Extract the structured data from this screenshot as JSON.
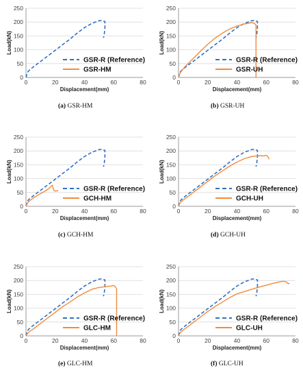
{
  "colors": {
    "reference": "#2f6fc2",
    "specimen": "#f28a3c",
    "grid": "#d9d9d9",
    "axis": "#9a9a9a"
  },
  "chart_data": [
    {
      "type": "line",
      "caption_letter": "(a)",
      "caption_text": "GSR-HM",
      "xlabel": "Displacement(mm)",
      "ylabel": "Load(kN)",
      "xlim": [
        0,
        80
      ],
      "ylim": [
        0,
        250
      ],
      "xticks": [
        0,
        20,
        40,
        60,
        80
      ],
      "yticks": [
        0,
        50,
        100,
        150,
        200,
        250
      ],
      "grid": "horizontal",
      "legend": "bottom-right",
      "series": [
        {
          "name": "GSR-R (Reference)",
          "style": "dashed",
          "color": "#2f6fc2",
          "x": [
            0,
            1,
            2,
            5,
            10,
            15,
            20,
            25,
            30,
            35,
            40,
            45,
            50,
            52,
            53,
            54,
            54,
            53.5,
            53
          ],
          "y": [
            0,
            18,
            25,
            38,
            58,
            78,
            98,
            118,
            138,
            160,
            180,
            195,
            205,
            206,
            204,
            202,
            180,
            155,
            143
          ]
        },
        {
          "name": "GSR-HM",
          "style": "solid",
          "color": "#f28a3c",
          "x": [],
          "y": []
        }
      ]
    },
    {
      "type": "line",
      "caption_letter": "(b)",
      "caption_text": "GSR-UH",
      "xlabel": "Displacement(mm)",
      "ylabel": "Load(kN)",
      "xlim": [
        0,
        80
      ],
      "ylim": [
        0,
        250
      ],
      "xticks": [
        0,
        20,
        40,
        60,
        80
      ],
      "yticks": [
        0,
        50,
        100,
        150,
        200,
        250
      ],
      "grid": "horizontal",
      "legend": "bottom-right",
      "series": [
        {
          "name": "GSR-R (Reference)",
          "style": "dashed",
          "color": "#2f6fc2",
          "x": [
            0,
            1,
            2,
            5,
            10,
            15,
            20,
            25,
            30,
            35,
            40,
            45,
            50,
            52,
            53,
            54,
            54,
            53.5,
            53
          ],
          "y": [
            0,
            18,
            25,
            38,
            58,
            78,
            98,
            118,
            138,
            160,
            180,
            195,
            205,
            206,
            204,
            202,
            180,
            155,
            143
          ]
        },
        {
          "name": "GSR-UH",
          "style": "solid",
          "color": "#f28a3c",
          "x": [
            0,
            1,
            3,
            5,
            10,
            15,
            20,
            25,
            30,
            35,
            40,
            45,
            50,
            52,
            53,
            53,
            53
          ],
          "y": [
            0,
            15,
            30,
            42,
            68,
            95,
            120,
            142,
            160,
            175,
            186,
            193,
            198,
            195,
            190,
            100,
            0
          ]
        }
      ]
    },
    {
      "type": "line",
      "caption_letter": "(c)",
      "caption_text": "GCH-HM",
      "xlabel": "Displacement(mm)",
      "ylabel": "Load(kN)",
      "xlim": [
        0,
        80
      ],
      "ylim": [
        0,
        250
      ],
      "xticks": [
        0,
        20,
        40,
        60,
        80
      ],
      "yticks": [
        0,
        50,
        100,
        150,
        200,
        250
      ],
      "grid": "horizontal",
      "legend": "bottom-right",
      "series": [
        {
          "name": "GSR-R (Reference)",
          "style": "dashed",
          "color": "#2f6fc2",
          "x": [
            0,
            1,
            2,
            5,
            10,
            15,
            20,
            25,
            30,
            35,
            40,
            45,
            50,
            52,
            53,
            54,
            54,
            53.5,
            53
          ],
          "y": [
            0,
            18,
            25,
            38,
            58,
            78,
            98,
            118,
            138,
            160,
            180,
            195,
            205,
            206,
            204,
            202,
            180,
            155,
            143
          ]
        },
        {
          "name": "GCH-HM",
          "style": "solid",
          "color": "#f28a3c",
          "x": [
            0,
            1,
            3,
            5,
            8,
            10,
            12,
            14,
            16,
            17,
            18,
            19,
            20,
            22
          ],
          "y": [
            0,
            12,
            22,
            30,
            40,
            46,
            52,
            58,
            66,
            72,
            76,
            58,
            55,
            57
          ]
        }
      ]
    },
    {
      "type": "line",
      "caption_letter": "(d)",
      "caption_text": "GCH-UH",
      "xlabel": "Displacement(mm)",
      "ylabel": "Load(kN)",
      "xlim": [
        0,
        80
      ],
      "ylim": [
        0,
        250
      ],
      "xticks": [
        0,
        20,
        40,
        60,
        80
      ],
      "yticks": [
        0,
        50,
        100,
        150,
        200,
        250
      ],
      "grid": "horizontal",
      "legend": "bottom-right",
      "series": [
        {
          "name": "GSR-R (Reference)",
          "style": "dashed",
          "color": "#2f6fc2",
          "x": [
            0,
            1,
            2,
            5,
            10,
            15,
            20,
            25,
            30,
            35,
            40,
            45,
            50,
            52,
            53,
            54,
            54,
            53.5,
            53
          ],
          "y": [
            0,
            18,
            25,
            38,
            58,
            78,
            98,
            118,
            138,
            160,
            180,
            195,
            205,
            206,
            204,
            202,
            180,
            155,
            143
          ]
        },
        {
          "name": "GCH-UH",
          "style": "solid",
          "color": "#f28a3c",
          "x": [
            0,
            1,
            3,
            5,
            10,
            15,
            20,
            25,
            30,
            35,
            40,
            45,
            50,
            55,
            58,
            60,
            61,
            62
          ],
          "y": [
            0,
            12,
            22,
            30,
            50,
            70,
            90,
            110,
            128,
            145,
            160,
            172,
            180,
            183,
            182,
            184,
            180,
            170
          ]
        }
      ]
    },
    {
      "type": "line",
      "caption_letter": "(e)",
      "caption_text": "GLC-HM",
      "xlabel": "Displacement(mm)",
      "ylabel": "Load(kN)",
      "xlim": [
        0,
        80
      ],
      "ylim": [
        0,
        250
      ],
      "xticks": [
        0,
        20,
        40,
        60,
        80
      ],
      "yticks": [
        0,
        50,
        100,
        150,
        200,
        250
      ],
      "grid": "horizontal",
      "legend": "bottom-right",
      "series": [
        {
          "name": "GSR-R (Reference)",
          "style": "dashed",
          "color": "#2f6fc2",
          "x": [
            0,
            1,
            2,
            5,
            10,
            15,
            20,
            25,
            30,
            35,
            40,
            45,
            50,
            52,
            53,
            54,
            54,
            53.5,
            53
          ],
          "y": [
            0,
            18,
            25,
            38,
            58,
            78,
            98,
            118,
            138,
            160,
            180,
            195,
            205,
            206,
            204,
            202,
            180,
            155,
            143
          ]
        },
        {
          "name": "GLC-HM",
          "style": "solid",
          "color": "#f28a3c",
          "x": [
            0,
            1,
            2,
            5,
            10,
            15,
            20,
            25,
            30,
            35,
            40,
            45,
            50,
            55,
            58,
            60,
            61,
            62,
            62
          ],
          "y": [
            0,
            8,
            14,
            25,
            45,
            65,
            85,
            105,
            122,
            140,
            155,
            168,
            175,
            178,
            180,
            182,
            178,
            170,
            0
          ]
        }
      ]
    },
    {
      "type": "line",
      "caption_letter": "(f)",
      "caption_text": "GLC-UH",
      "xlabel": "Displacement(mm)",
      "ylabel": "Load(kN)",
      "xlim": [
        0,
        80
      ],
      "ylim": [
        0,
        250
      ],
      "xticks": [
        0,
        20,
        40,
        60,
        80
      ],
      "yticks": [
        0,
        50,
        100,
        150,
        200,
        250
      ],
      "grid": "horizontal",
      "legend": "bottom-right",
      "series": [
        {
          "name": "GSR-R (Reference)",
          "style": "dashed",
          "color": "#2f6fc2",
          "x": [
            0,
            1,
            2,
            5,
            10,
            15,
            20,
            25,
            30,
            35,
            40,
            45,
            50,
            52,
            53,
            54,
            54,
            53.5,
            53
          ],
          "y": [
            0,
            18,
            25,
            38,
            58,
            78,
            98,
            118,
            138,
            160,
            180,
            195,
            205,
            206,
            204,
            202,
            180,
            155,
            143
          ]
        },
        {
          "name": "GLC-UH",
          "style": "solid",
          "color": "#f28a3c",
          "x": [
            0,
            1,
            3,
            5,
            10,
            15,
            20,
            25,
            30,
            35,
            40,
            45,
            50,
            55,
            60,
            65,
            70,
            72,
            74,
            75,
            76
          ],
          "y": [
            0,
            10,
            20,
            28,
            48,
            68,
            88,
            106,
            122,
            138,
            152,
            160,
            168,
            176,
            183,
            190,
            196,
            197,
            194,
            188,
            190
          ]
        }
      ]
    }
  ]
}
